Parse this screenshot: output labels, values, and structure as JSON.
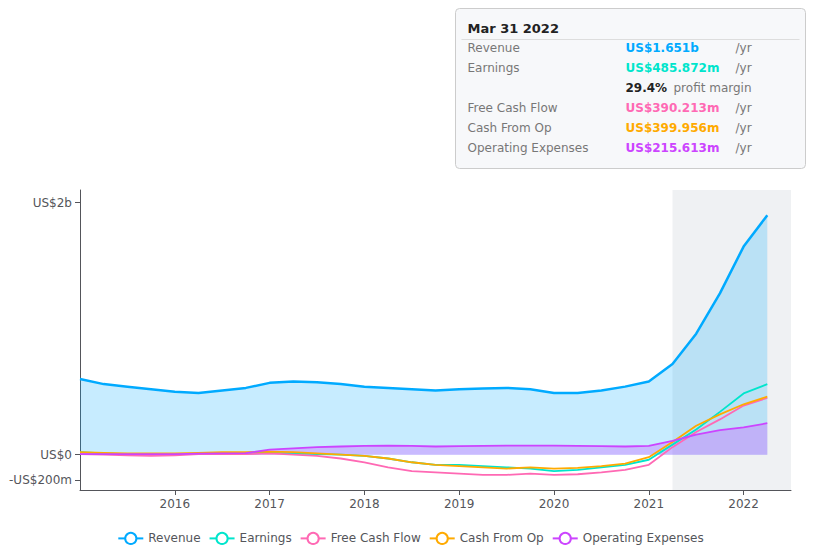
{
  "chart_data": {
    "type": "line",
    "x": [
      2015.0,
      2015.25,
      2015.5,
      2015.75,
      2016.0,
      2016.25,
      2016.5,
      2016.75,
      2017.0,
      2017.25,
      2017.5,
      2017.75,
      2018.0,
      2018.25,
      2018.5,
      2018.75,
      2019.0,
      2019.25,
      2019.5,
      2019.75,
      2020.0,
      2020.25,
      2020.5,
      2020.75,
      2021.0,
      2021.25,
      2021.5,
      2021.75,
      2022.0,
      2022.25
    ],
    "series": [
      {
        "name": "Revenue",
        "color": "#00aaff",
        "values": [
          600,
          560,
          540,
          520,
          500,
          490,
          510,
          530,
          570,
          580,
          575,
          560,
          540,
          530,
          520,
          510,
          520,
          525,
          530,
          520,
          490,
          490,
          510,
          540,
          580,
          720,
          960,
          1280,
          1651,
          1900
        ]
      },
      {
        "name": "Earnings",
        "color": "#00e5cc",
        "values": [
          20,
          10,
          5,
          5,
          5,
          5,
          10,
          10,
          15,
          10,
          5,
          0,
          -10,
          -30,
          -60,
          -80,
          -80,
          -90,
          -100,
          -110,
          -130,
          -120,
          -100,
          -80,
          -40,
          80,
          200,
          340,
          486,
          560
        ]
      },
      {
        "name": "Free Cash Flow",
        "color": "#ff69b4",
        "values": [
          5,
          0,
          -5,
          -10,
          -5,
          5,
          5,
          5,
          10,
          0,
          -10,
          -30,
          -60,
          -100,
          -130,
          -140,
          -150,
          -160,
          -160,
          -150,
          -160,
          -155,
          -140,
          -120,
          -80,
          60,
          180,
          280,
          390,
          450
        ]
      },
      {
        "name": "Cash From Op",
        "color": "#ffaa00",
        "values": [
          20,
          15,
          10,
          10,
          10,
          15,
          20,
          20,
          25,
          20,
          10,
          0,
          -10,
          -30,
          -60,
          -80,
          -90,
          -100,
          -110,
          -100,
          -110,
          -105,
          -90,
          -70,
          -20,
          100,
          230,
          320,
          400,
          460
        ]
      },
      {
        "name": "Operating Expenses",
        "color": "#cc44ff",
        "values": [
          5,
          5,
          5,
          5,
          5,
          8,
          10,
          12,
          40,
          50,
          60,
          65,
          70,
          72,
          70,
          65,
          68,
          70,
          72,
          72,
          72,
          70,
          68,
          65,
          70,
          110,
          160,
          195,
          216,
          250
        ]
      }
    ],
    "xlim": [
      2015.0,
      2022.5
    ],
    "xticks": [
      2016,
      2017,
      2018,
      2019,
      2020,
      2021,
      2022
    ],
    "ylim": [
      -280,
      2100
    ],
    "yticks": [
      {
        "value": 2000,
        "label": "US$2b"
      },
      {
        "value": 0,
        "label": "US$0"
      },
      {
        "value": -200,
        "label": "-US$200m"
      }
    ],
    "grid": false,
    "legend": "bottom",
    "highlight": [
      2021.25,
      2022.5
    ],
    "annotations": [
      [
        "Mar 31 2022"
      ],
      [
        "Revenue",
        "US$1.651b",
        "/yr"
      ],
      [
        "Earnings",
        "US$485.872m",
        "/yr"
      ],
      [
        "29.4%",
        "profit margin"
      ],
      [
        "Free Cash Flow",
        "US$390.213m",
        "/yr"
      ],
      [
        "Cash From Op",
        "US$399.956m",
        "/yr"
      ],
      [
        "Operating Expenses",
        "US$215.613m",
        "/yr"
      ]
    ]
  }
}
